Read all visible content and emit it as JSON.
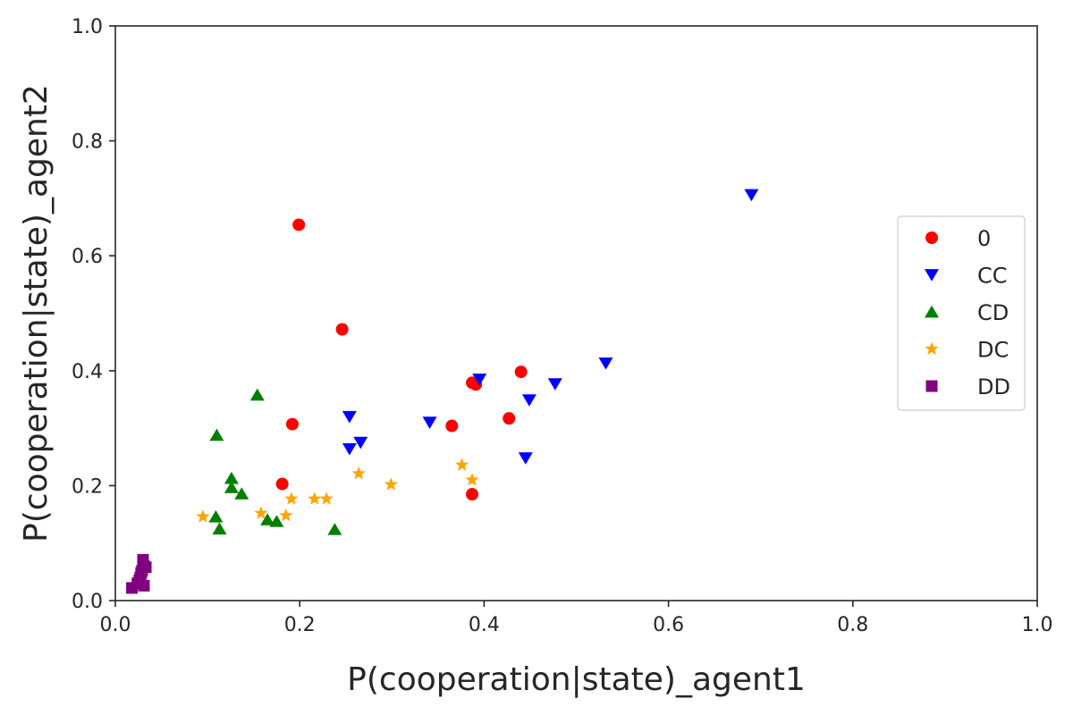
{
  "chart_data": {
    "type": "scatter",
    "xlabel": "P(cooperation|state)_agent1",
    "ylabel": "P(cooperation|state)_agent2",
    "xlim": [
      0.0,
      1.0
    ],
    "ylim": [
      0.0,
      1.0
    ],
    "xticks": [
      "0.0",
      "0.2",
      "0.4",
      "0.6",
      "0.8",
      "1.0"
    ],
    "yticks": [
      "0.0",
      "0.2",
      "0.4",
      "0.6",
      "0.8",
      "1.0"
    ],
    "grid": false,
    "legend_position": "center-right",
    "series": [
      {
        "name": "0",
        "color": "#ff0000",
        "marker": "circle",
        "points": [
          [
            0.199,
            0.654
          ],
          [
            0.246,
            0.472
          ],
          [
            0.192,
            0.307
          ],
          [
            0.181,
            0.203
          ],
          [
            0.365,
            0.304
          ],
          [
            0.387,
            0.379
          ],
          [
            0.391,
            0.376
          ],
          [
            0.44,
            0.398
          ],
          [
            0.427,
            0.317
          ],
          [
            0.387,
            0.185
          ]
        ]
      },
      {
        "name": "CC",
        "color": "#0000ff",
        "marker": "triangle-down",
        "points": [
          [
            0.69,
            0.706
          ],
          [
            0.532,
            0.413
          ],
          [
            0.477,
            0.377
          ],
          [
            0.449,
            0.349
          ],
          [
            0.445,
            0.248
          ],
          [
            0.395,
            0.385
          ],
          [
            0.341,
            0.31
          ],
          [
            0.254,
            0.32
          ],
          [
            0.266,
            0.275
          ],
          [
            0.254,
            0.264
          ]
        ]
      },
      {
        "name": "CD",
        "color": "#008000",
        "marker": "triangle-up",
        "points": [
          [
            0.154,
            0.358
          ],
          [
            0.11,
            0.288
          ],
          [
            0.126,
            0.213
          ],
          [
            0.126,
            0.197
          ],
          [
            0.137,
            0.186
          ],
          [
            0.109,
            0.146
          ],
          [
            0.113,
            0.125
          ],
          [
            0.165,
            0.141
          ],
          [
            0.175,
            0.138
          ],
          [
            0.238,
            0.124
          ]
        ]
      },
      {
        "name": "DC",
        "color": "#ffa500",
        "marker": "star",
        "points": [
          [
            0.095,
            0.146
          ],
          [
            0.158,
            0.152
          ],
          [
            0.185,
            0.148
          ],
          [
            0.191,
            0.177
          ],
          [
            0.216,
            0.177
          ],
          [
            0.229,
            0.177
          ],
          [
            0.264,
            0.221
          ],
          [
            0.299,
            0.202
          ],
          [
            0.376,
            0.236
          ],
          [
            0.387,
            0.21
          ]
        ]
      },
      {
        "name": "DD",
        "color": "#800080",
        "marker": "square",
        "points": [
          [
            0.018,
            0.022
          ],
          [
            0.024,
            0.03
          ],
          [
            0.027,
            0.04
          ],
          [
            0.029,
            0.052
          ],
          [
            0.031,
            0.06
          ],
          [
            0.033,
            0.058
          ],
          [
            0.03,
            0.071
          ],
          [
            0.031,
            0.026
          ],
          [
            0.028,
            0.048
          ],
          [
            0.026,
            0.035
          ]
        ]
      }
    ]
  }
}
